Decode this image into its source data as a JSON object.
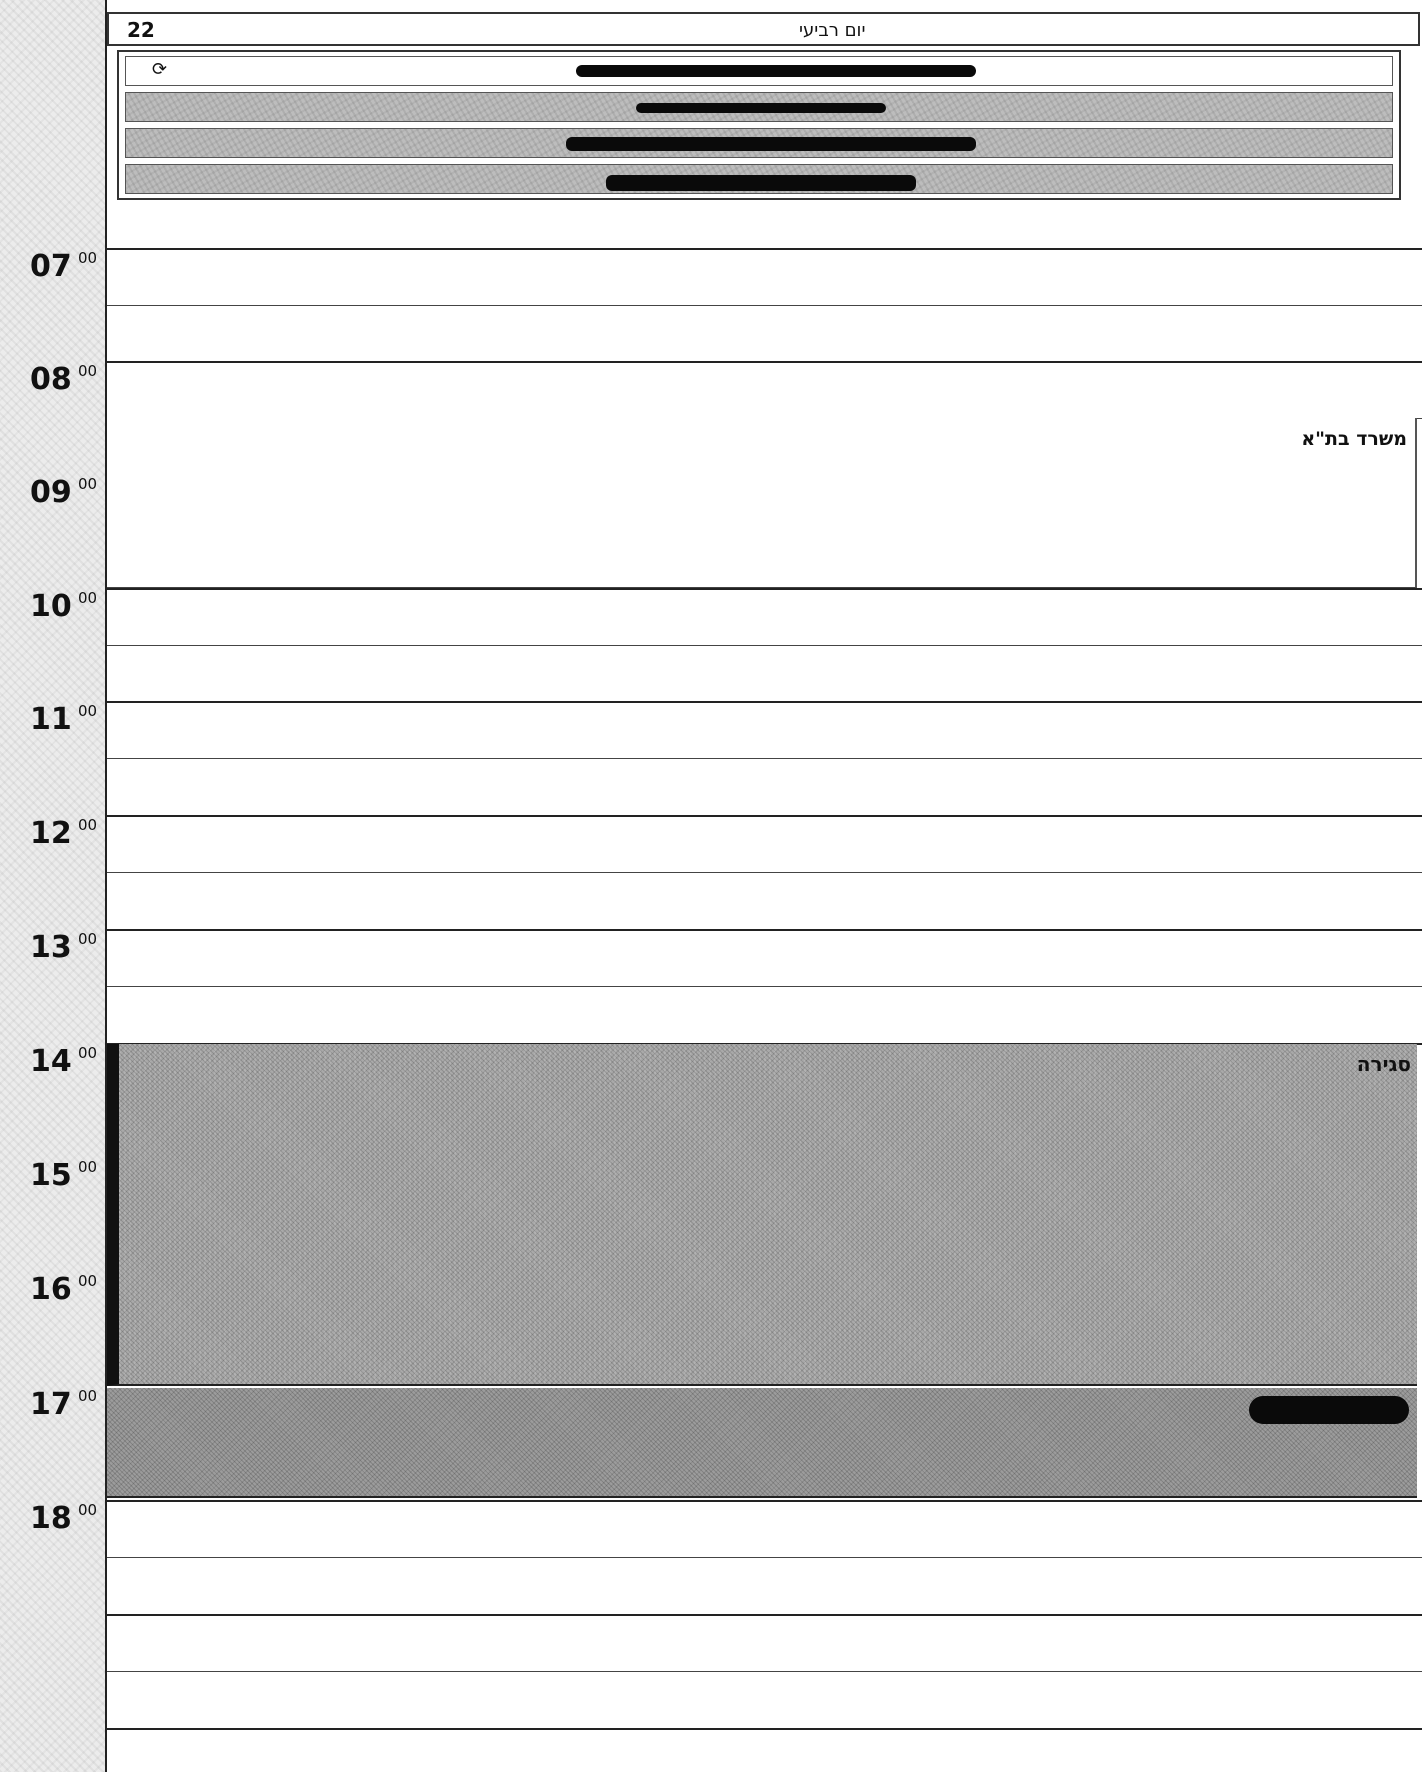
{
  "header": {
    "day_number": "22",
    "day_name": "יום רביעי"
  },
  "allday_events": [
    {
      "recurring": true
    },
    {},
    {},
    {}
  ],
  "hours": [
    {
      "hour": "07",
      "min": "00"
    },
    {
      "hour": "08",
      "min": "00"
    },
    {
      "hour": "09",
      "min": "00"
    },
    {
      "hour": "10",
      "min": "00"
    },
    {
      "hour": "11",
      "min": "00"
    },
    {
      "hour": "12",
      "min": "00"
    },
    {
      "hour": "13",
      "min": "00"
    },
    {
      "hour": "14",
      "min": "00"
    },
    {
      "hour": "15",
      "min": "00"
    },
    {
      "hour": "16",
      "min": "00"
    },
    {
      "hour": "17",
      "min": "00"
    },
    {
      "hour": "18",
      "min": "00"
    }
  ],
  "events": {
    "office": {
      "title": "משרד בת\"א"
    },
    "closing": {
      "title": "סגירה"
    }
  },
  "icons": {
    "recurrence": "recurrence-icon"
  }
}
